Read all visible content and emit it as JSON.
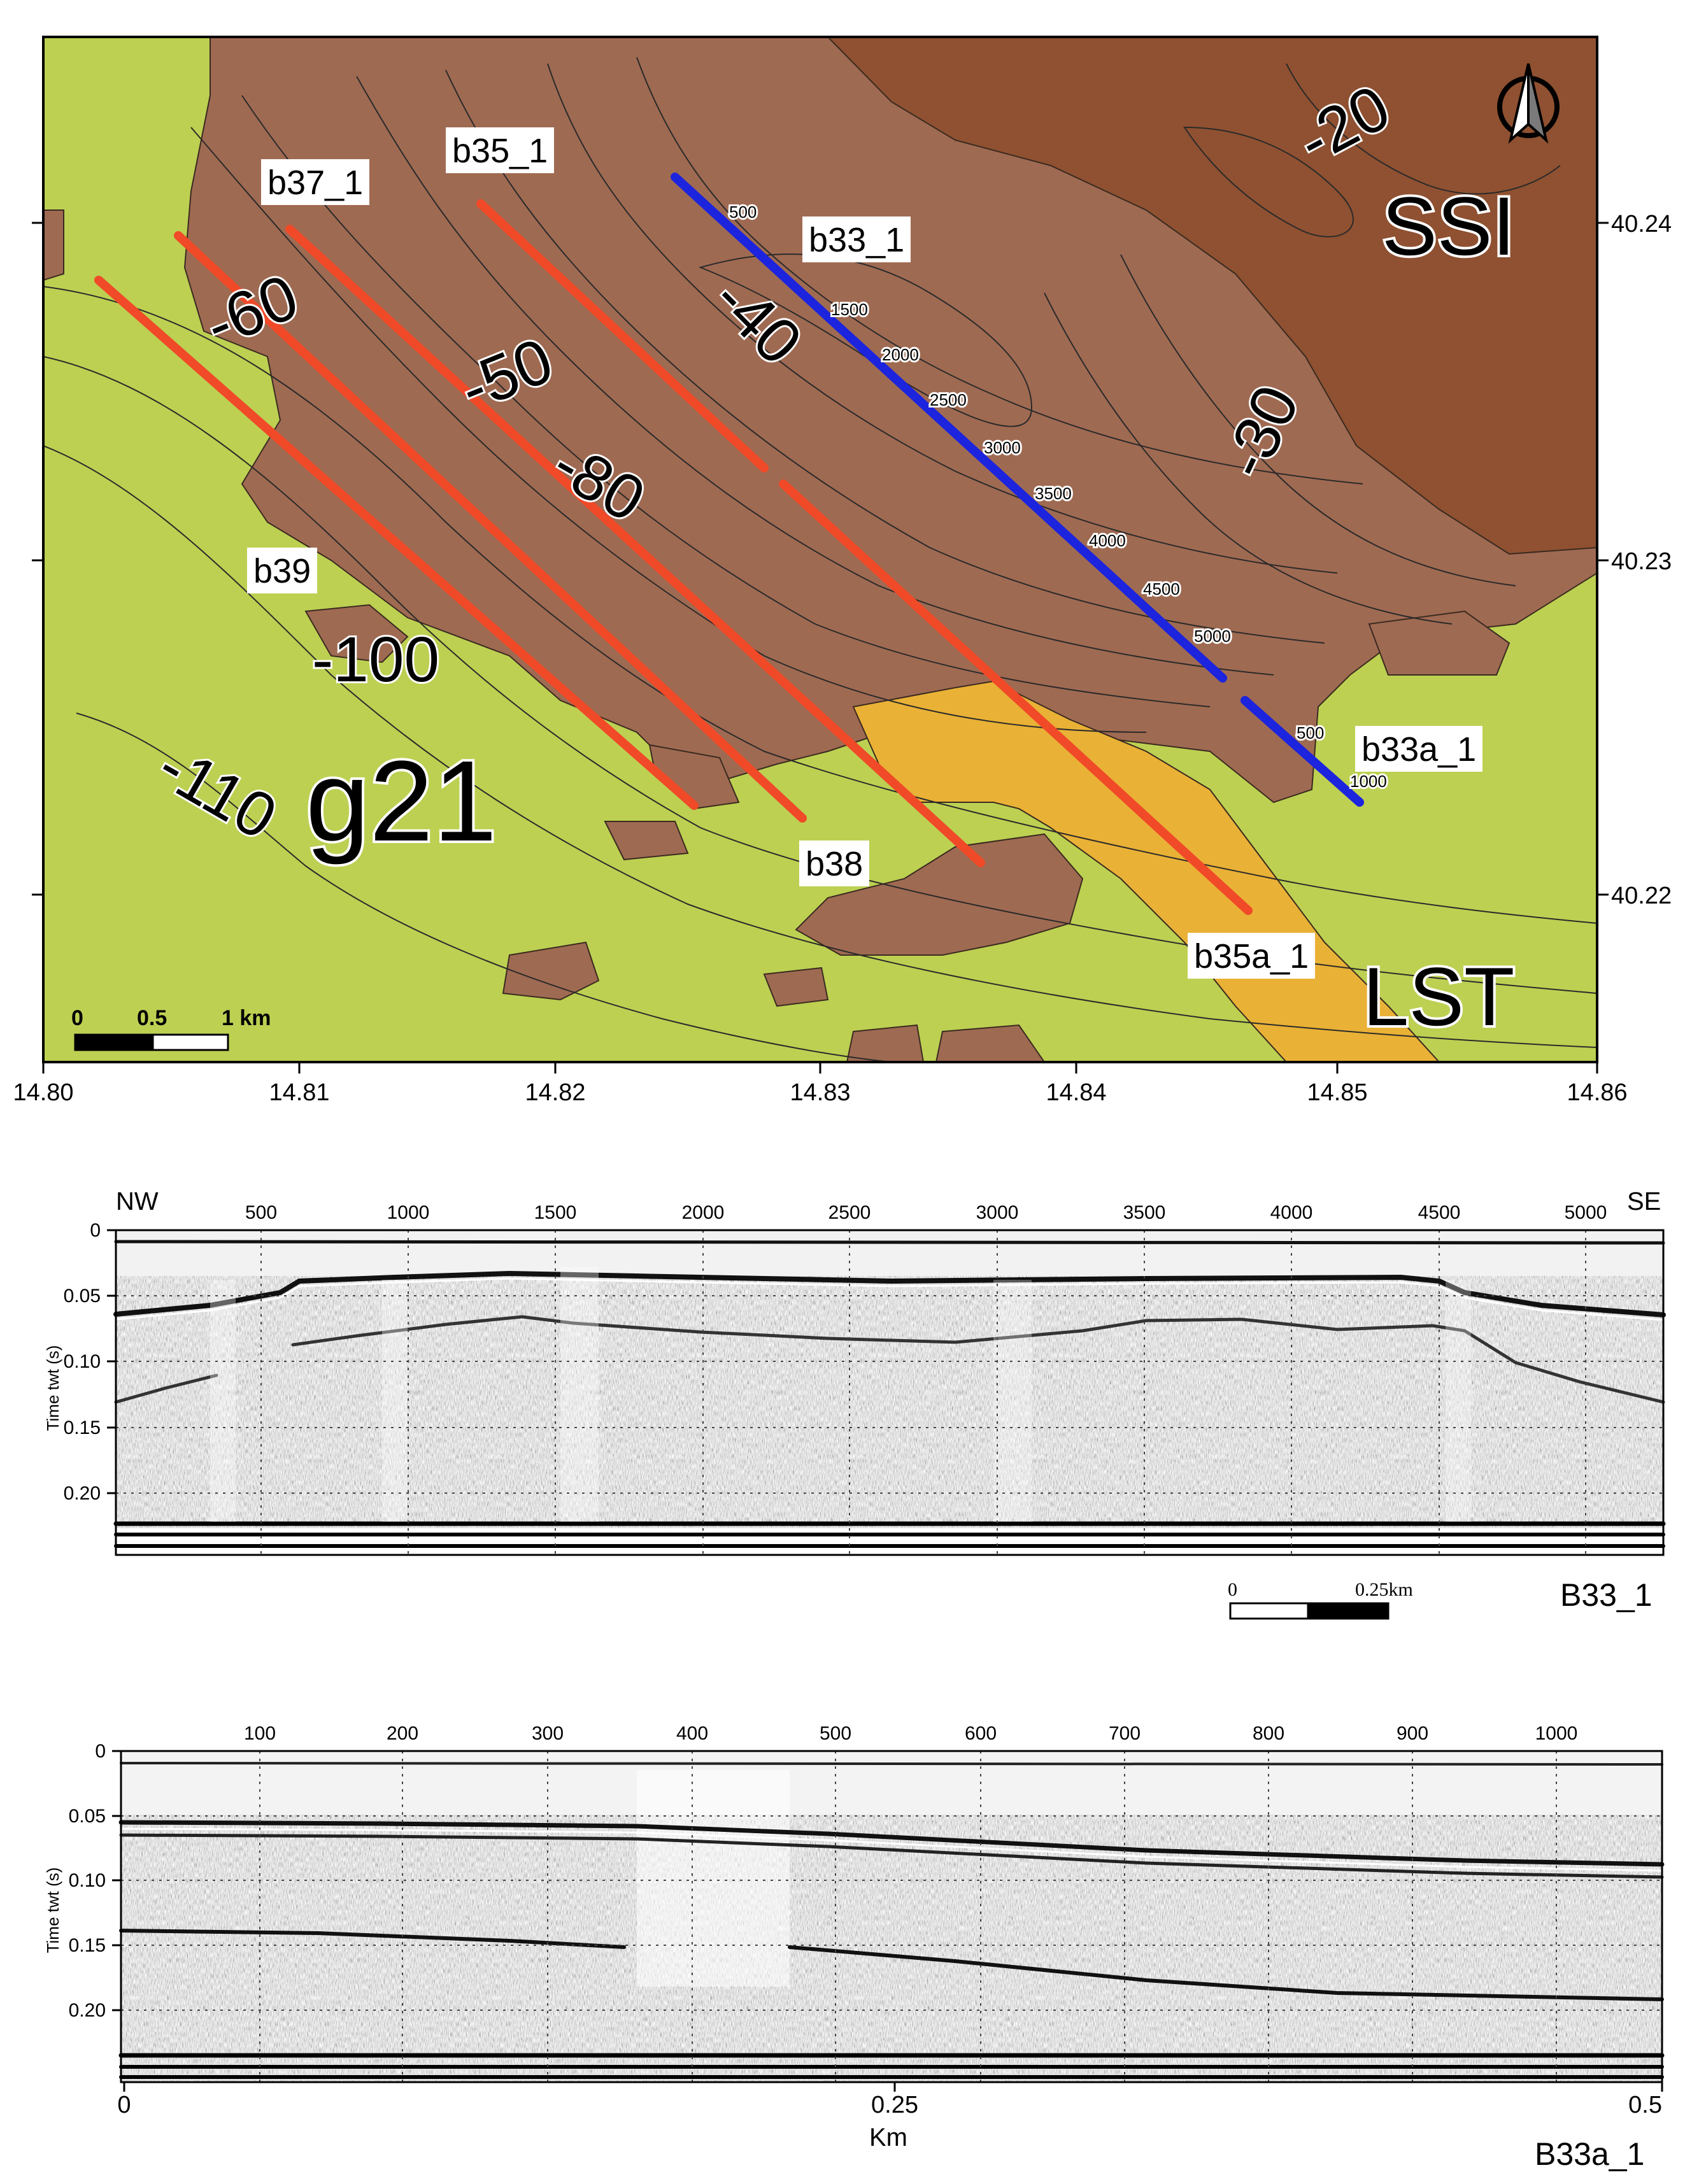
{
  "map": {
    "lon_ticks": [
      "14.80",
      "14.81",
      "14.82",
      "14.83",
      "14.84",
      "14.85",
      "14.86"
    ],
    "lat_ticks": [
      "40.24",
      "40.23",
      "40.22"
    ],
    "contours": [
      "-20",
      "-30",
      "-40",
      "-50",
      "-60",
      "-80",
      "-100",
      "-110"
    ],
    "units": [
      "SSI",
      "g21",
      "LST"
    ],
    "lines": [
      "b37_1",
      "b35_1",
      "b33_1",
      "b39",
      "b38",
      "b35a_1",
      "b33a_1"
    ],
    "b33_ticks": [
      "500",
      "1500",
      "2000",
      "2500",
      "3000",
      "3500",
      "4000",
      "4500",
      "5000"
    ],
    "b33a_ticks": [
      "500",
      "1000"
    ],
    "scalebar": [
      "0",
      "0.5",
      "1 km"
    ],
    "north_icon": "north-arrow-icon",
    "colors": {
      "g21": "#bdd052",
      "ssi": "#8f5131",
      "unit_brown": "#9f6a52",
      "lst": "#e9b136",
      "line_red": "#f04a28",
      "line_blue": "#1d24dd"
    }
  },
  "profile1": {
    "left_label": "NW",
    "right_label": "SE",
    "x_ticks": [
      "500",
      "1000",
      "1500",
      "2000",
      "2500",
      "3000",
      "3500",
      "4000",
      "4500",
      "5000"
    ],
    "y_ticks": [
      "0",
      "0.05",
      "0.10",
      "0.15",
      "0.20"
    ],
    "y_label": "Time twt (s)",
    "scalebar": [
      "0",
      "0.25km"
    ],
    "name": "B33_1"
  },
  "profile2": {
    "x_ticks": [
      "100",
      "200",
      "300",
      "400",
      "500",
      "600",
      "700",
      "800",
      "900",
      "1000"
    ],
    "y_ticks": [
      "0",
      "0.05",
      "0.10",
      "0.15",
      "0.20"
    ],
    "y_label": "Time twt (s)",
    "km_ticks": [
      "0",
      "0.25",
      "0.5"
    ],
    "km_label": "Km",
    "name": "B33a_1"
  }
}
